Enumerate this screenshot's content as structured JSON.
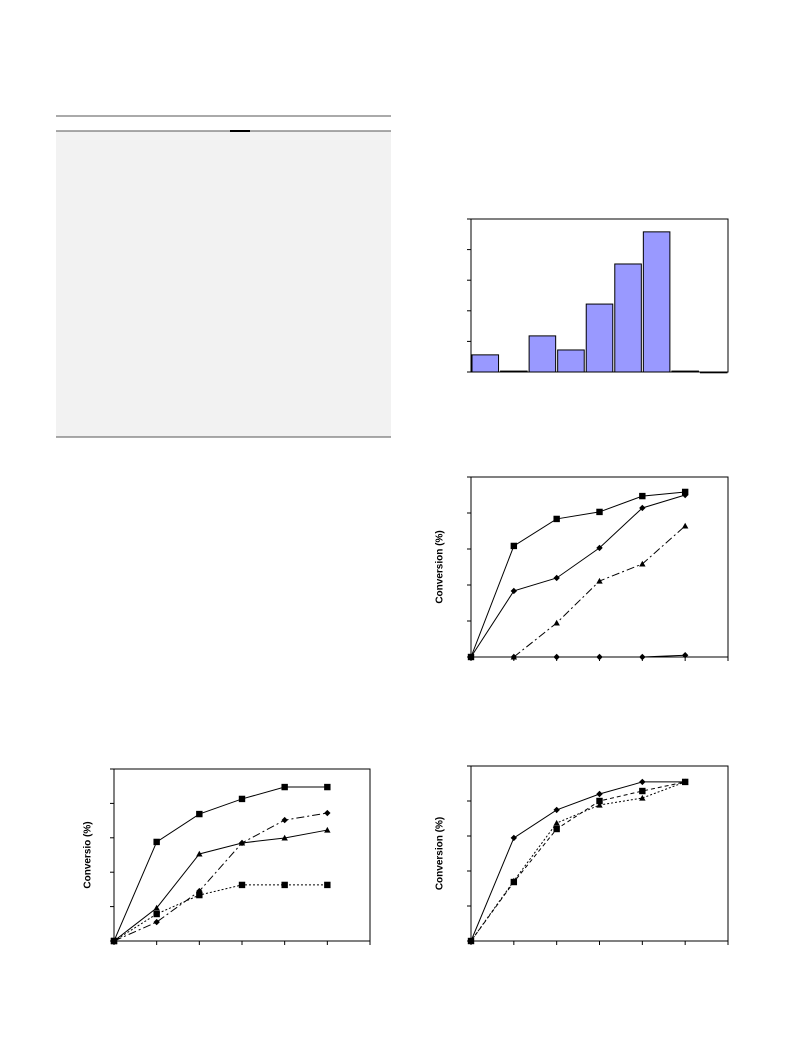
{
  "chart_data": [
    {
      "type": "bar",
      "categories": [
        null,
        null,
        null,
        null,
        null,
        null,
        null,
        null,
        null
      ],
      "values": [
        0.56,
        0.03,
        1.18,
        0.72,
        2.22,
        3.53,
        4.58,
        0.03,
        0
      ],
      "color": "#9999ff",
      "ylim": [
        0,
        5
      ],
      "yticks": [
        0,
        1,
        2,
        3,
        4,
        5
      ]
    },
    {
      "type": "line",
      "ylabel": "Conversion (%)",
      "x": [
        0,
        1,
        2,
        3,
        4,
        5
      ],
      "xlim": [
        0,
        6
      ],
      "xticks": [
        0,
        1,
        2,
        3,
        4,
        5,
        6
      ],
      "ylim": [
        0,
        100
      ],
      "yticks": [
        0,
        20,
        40,
        60,
        80,
        100
      ],
      "series": [
        {
          "color": "#000000",
          "marker": "square",
          "dash": "solid",
          "values": [
            0,
            61.7,
            76.7,
            80.6,
            89.4,
            91.7
          ]
        },
        {
          "color": "#000000",
          "marker": "diamond",
          "dash": "solid",
          "values": [
            0,
            36.7,
            43.9,
            60.6,
            82.8,
            90
          ]
        },
        {
          "color": "#000000",
          "marker": "triangle",
          "dash": "dashdot",
          "values": [
            null,
            0,
            18.9,
            42.2,
            51.7,
            72.8
          ]
        },
        {
          "color": "#000000",
          "marker": "diamond",
          "dash": "solid",
          "values": [
            0,
            0,
            0,
            0,
            0,
            1
          ]
        }
      ]
    },
    {
      "type": "line",
      "ylabel": "Conversio (%)",
      "x": [
        0,
        1,
        2,
        3,
        4,
        5
      ],
      "xlim": [
        0,
        6
      ],
      "xticks": [
        0,
        1,
        2,
        3,
        4,
        5,
        6
      ],
      "ylim": [
        0,
        100
      ],
      "yticks": [
        0,
        20,
        40,
        60,
        80,
        100
      ],
      "series": [
        {
          "color": "#000000",
          "marker": "square",
          "dash": "solid",
          "values": [
            0,
            57.6,
            73.8,
            82.6,
            89.5,
            89.5
          ]
        },
        {
          "color": "#000000",
          "marker": "diamond",
          "dash": "dashdot",
          "values": [
            0,
            11,
            29,
            57,
            70.3,
            74.4
          ]
        },
        {
          "color": "#000000",
          "marker": "triangle",
          "dash": "solid",
          "values": [
            0,
            19.2,
            50.6,
            57,
            59.9,
            64.5
          ]
        },
        {
          "color": "#000000",
          "marker": "square",
          "dash": "dotted",
          "values": [
            0,
            15.7,
            26.7,
            32.6,
            32.6,
            32.6
          ]
        }
      ]
    },
    {
      "type": "line",
      "ylabel": "Conversion (%)",
      "x": [
        0,
        1,
        2,
        3,
        4,
        5
      ],
      "xlim": [
        0,
        6
      ],
      "xticks": [
        0,
        1,
        2,
        3,
        4,
        5,
        6
      ],
      "ylim": [
        0,
        100
      ],
      "yticks": [
        0,
        20,
        40,
        60,
        80,
        100
      ],
      "series": [
        {
          "color": "#000000",
          "marker": "diamond",
          "dash": "solid",
          "values": [
            0,
            58.9,
            74.9,
            84,
            90.9,
            90.9
          ]
        },
        {
          "color": "#000000",
          "marker": "triangle",
          "dash": "dotted",
          "values": [
            0,
            34.3,
            67.4,
            77.7,
            81.7,
            90.9
          ]
        },
        {
          "color": "#000000",
          "marker": "square",
          "dash": "dashed",
          "values": [
            0,
            33.7,
            64,
            80,
            85.7,
            90.9
          ]
        }
      ]
    }
  ]
}
